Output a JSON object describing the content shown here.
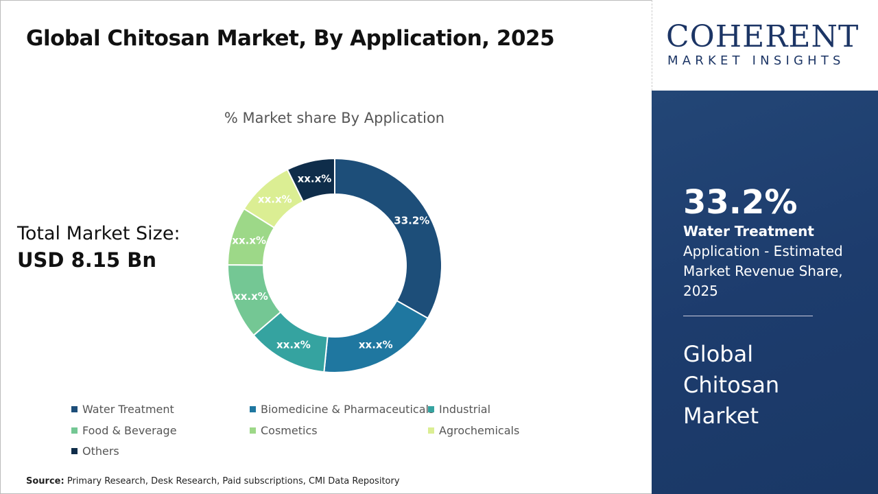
{
  "header": {
    "title": "Global Chitosan Market, By Application, 2025"
  },
  "total": {
    "label": "Total Market Size:",
    "value": "USD 8.15 Bn"
  },
  "logo": {
    "main": "COHERENT",
    "sub": "MARKET INSIGHTS"
  },
  "panel": {
    "percent": "33.2%",
    "segment": "Water Treatment",
    "description": "Application - Estimated Market Revenue Share, 2025",
    "market": "Global Chitosan Market"
  },
  "source": {
    "label": "Source:",
    "text": "Primary Research, Desk Research, Paid subscriptions, CMI Data Repository"
  },
  "chart_data": {
    "type": "pie",
    "donut": true,
    "title": "% Market share By Application",
    "legend_position": "bottom",
    "categories": [
      "Water Treatment",
      "Biomedicine & Pharmaceuticals",
      "Industrial",
      "Food & Beverage",
      "Cosmetics",
      "Agrochemicals",
      "Others"
    ],
    "values": [
      33.2,
      18.4,
      12.1,
      11.4,
      8.8,
      8.8,
      7.3
    ],
    "labels": [
      "33.2%",
      "xx.x%",
      "xx.x%",
      "xx.x%",
      "xx.x%",
      "xx.x%",
      "xx.x%"
    ],
    "colors": [
      "#1d4e79",
      "#1f77a0",
      "#35a3a0",
      "#74c794",
      "#9dd888",
      "#dbee93",
      "#0f2d4a"
    ]
  }
}
